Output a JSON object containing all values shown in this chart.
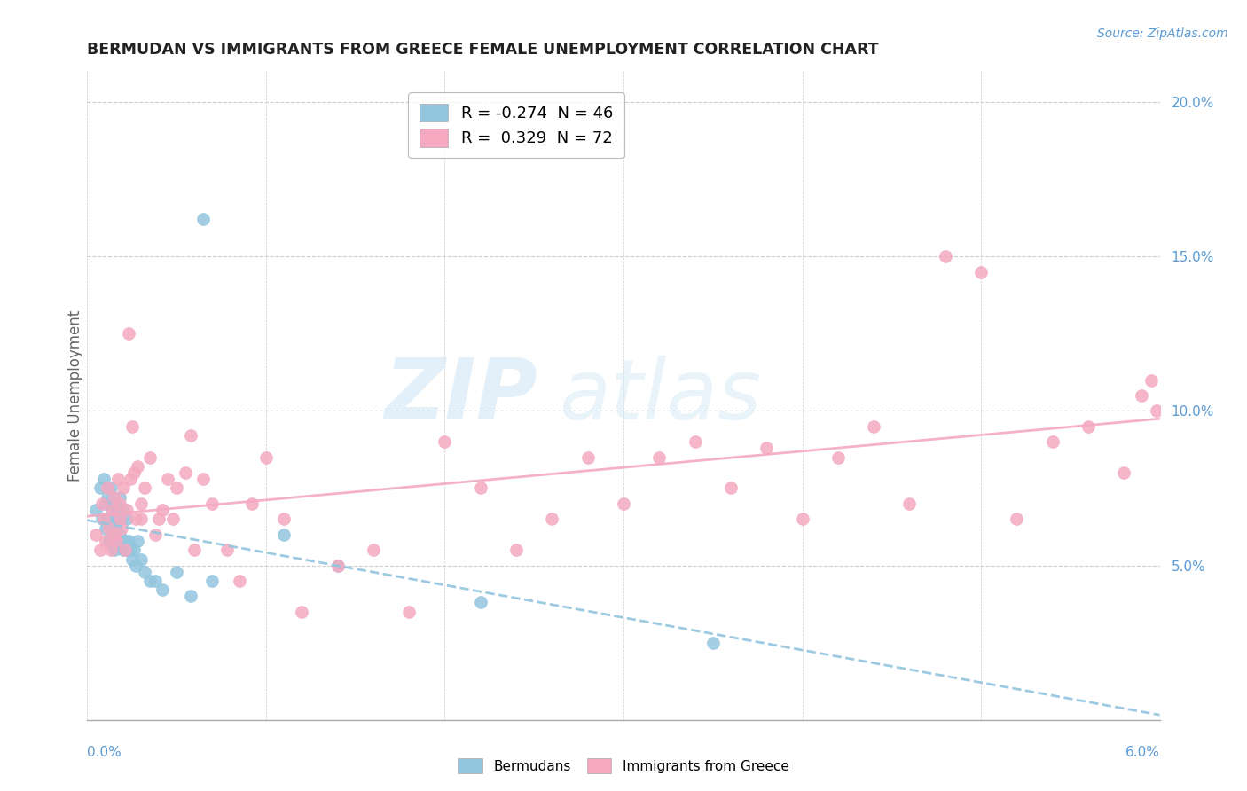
{
  "title": "BERMUDAN VS IMMIGRANTS FROM GREECE FEMALE UNEMPLOYMENT CORRELATION CHART",
  "source": "Source: ZipAtlas.com",
  "ylabel": "Female Unemployment",
  "xlim": [
    0.0,
    6.0
  ],
  "ylim": [
    0.0,
    21.0
  ],
  "yticks": [
    5.0,
    10.0,
    15.0,
    20.0
  ],
  "legend_blue_label": "R = -0.274  N = 46",
  "legend_pink_label": "R =  0.329  N = 72",
  "blue_color": "#92C5DE",
  "pink_color": "#F4A9C0",
  "watermark_zip": "ZIP",
  "watermark_atlas": "atlas",
  "bermudans_label": "Bermudans",
  "greece_label": "Immigrants from Greece",
  "blue_x": [
    0.05,
    0.07,
    0.08,
    0.09,
    0.1,
    0.1,
    0.11,
    0.11,
    0.12,
    0.13,
    0.13,
    0.14,
    0.14,
    0.15,
    0.15,
    0.16,
    0.16,
    0.17,
    0.17,
    0.18,
    0.18,
    0.19,
    0.2,
    0.2,
    0.21,
    0.22,
    0.22,
    0.23,
    0.24,
    0.25,
    0.26,
    0.27,
    0.28,
    0.3,
    0.32,
    0.35,
    0.38,
    0.42,
    0.5,
    0.58,
    0.65,
    0.7,
    1.1,
    1.4,
    2.2,
    3.5
  ],
  "blue_y": [
    6.8,
    7.5,
    6.5,
    7.8,
    6.2,
    7.0,
    6.5,
    7.2,
    5.8,
    6.5,
    7.5,
    6.0,
    6.8,
    5.5,
    7.0,
    6.2,
    6.8,
    5.8,
    6.5,
    6.0,
    7.2,
    6.5,
    5.5,
    6.8,
    5.8,
    5.5,
    6.5,
    5.8,
    5.5,
    5.2,
    5.5,
    5.0,
    5.8,
    5.2,
    4.8,
    4.5,
    4.5,
    4.2,
    4.8,
    4.0,
    16.2,
    4.5,
    6.0,
    5.0,
    3.8,
    2.5
  ],
  "pink_x": [
    0.05,
    0.07,
    0.08,
    0.09,
    0.1,
    0.11,
    0.12,
    0.13,
    0.14,
    0.15,
    0.15,
    0.16,
    0.17,
    0.18,
    0.18,
    0.19,
    0.2,
    0.21,
    0.22,
    0.23,
    0.24,
    0.25,
    0.26,
    0.27,
    0.28,
    0.3,
    0.3,
    0.32,
    0.35,
    0.38,
    0.4,
    0.42,
    0.45,
    0.48,
    0.5,
    0.55,
    0.58,
    0.6,
    0.65,
    0.7,
    0.78,
    0.85,
    0.92,
    1.0,
    1.1,
    1.2,
    1.4,
    1.6,
    1.8,
    2.0,
    2.2,
    2.4,
    2.6,
    2.8,
    3.0,
    3.2,
    3.4,
    3.6,
    3.8,
    4.0,
    4.2,
    4.4,
    4.6,
    4.8,
    5.0,
    5.2,
    5.4,
    5.6,
    5.8,
    5.9,
    5.95,
    5.98
  ],
  "pink_y": [
    6.0,
    5.5,
    7.0,
    6.5,
    5.8,
    7.5,
    6.2,
    5.5,
    6.8,
    6.0,
    7.2,
    5.8,
    7.8,
    6.5,
    7.0,
    6.2,
    7.5,
    5.5,
    6.8,
    12.5,
    7.8,
    9.5,
    8.0,
    6.5,
    8.2,
    6.5,
    7.0,
    7.5,
    8.5,
    6.0,
    6.5,
    6.8,
    7.8,
    6.5,
    7.5,
    8.0,
    9.2,
    5.5,
    7.8,
    7.0,
    5.5,
    4.5,
    7.0,
    8.5,
    6.5,
    3.5,
    5.0,
    5.5,
    3.5,
    9.0,
    7.5,
    5.5,
    6.5,
    8.5,
    7.0,
    8.5,
    9.0,
    7.5,
    8.8,
    6.5,
    8.5,
    9.5,
    7.0,
    15.0,
    14.5,
    6.5,
    9.0,
    9.5,
    8.0,
    10.5,
    11.0,
    10.0
  ]
}
